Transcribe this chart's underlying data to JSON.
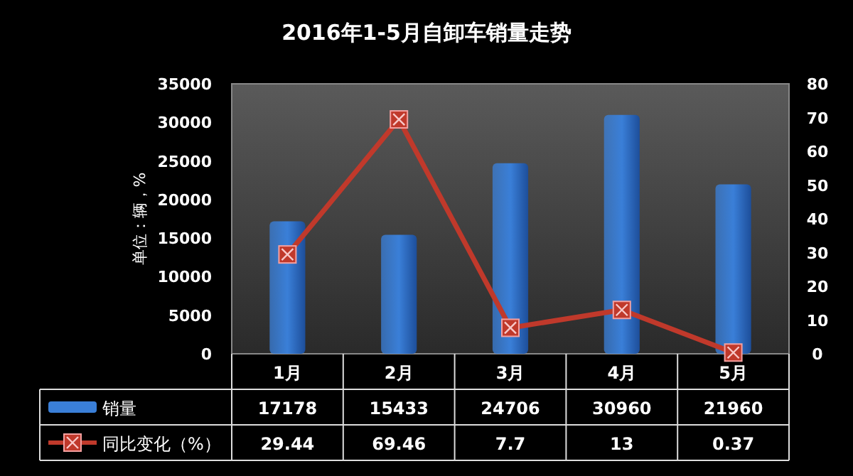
{
  "chart_data": {
    "type": "bar",
    "title": "2016年1-5月自卸车销量走势",
    "ylabel": "单位：辆，%",
    "categories": [
      "1月",
      "2月",
      "3月",
      "4月",
      "5月"
    ],
    "series": [
      {
        "name": "销量",
        "color": "#3a7fd8",
        "values": [
          17178,
          15433,
          24706,
          30960,
          21960
        ]
      },
      {
        "name": "同比变化（%）",
        "type": "line",
        "axis": "y2",
        "color": "#c0392b",
        "marker": "square",
        "values": [
          29.44,
          69.46,
          7.7,
          13.0,
          0.37
        ]
      }
    ],
    "ylim": [
      0,
      35000
    ],
    "yticks": [
      0,
      5000,
      10000,
      15000,
      20000,
      25000,
      30000,
      35000
    ],
    "y2lim": [
      0,
      80
    ],
    "y2ticks": [
      0,
      10,
      20,
      30,
      40,
      50,
      60,
      70,
      80
    ],
    "data_labels": true,
    "legend": "bottom",
    "grid": false
  }
}
